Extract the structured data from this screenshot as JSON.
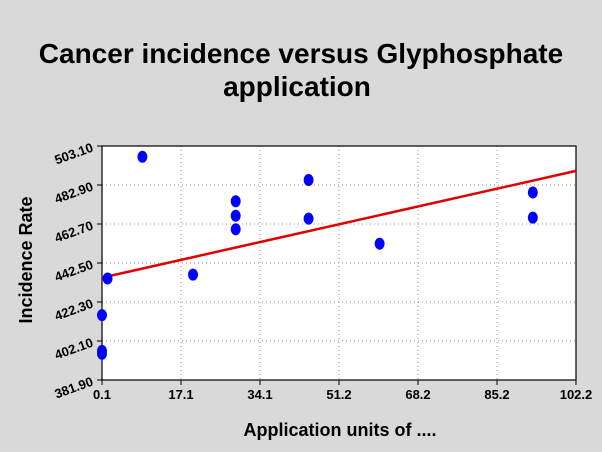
{
  "chart_data": {
    "type": "scatter",
    "title_lines": [
      "Cancer incidence versus Glyphosphate",
      "application"
    ],
    "xlabel": "Application units of ....",
    "ylabel": "Incidence Rate",
    "x_ticks": [
      "0.1",
      "17.1",
      "34.1",
      "51.2",
      "68.2",
      "85.2",
      "102.2"
    ],
    "y_ticks": [
      "381.90",
      "402.10",
      "422.30",
      "442.50",
      "462.70",
      "482.90",
      "503.10"
    ],
    "xlim": [
      0.1,
      102.2
    ],
    "ylim": [
      381.9,
      503.1
    ],
    "grid": true,
    "point_color": "#0000ff",
    "trendline_color": "#e00000",
    "series": [
      {
        "points": [
          {
            "x": 0.1,
            "y": 415.5
          },
          {
            "x": 0.1,
            "y": 397.0
          },
          {
            "x": 0.1,
            "y": 395.5
          },
          {
            "x": 1.3,
            "y": 434.5
          },
          {
            "x": 8.8,
            "y": 497.5
          },
          {
            "x": 19.7,
            "y": 436.5
          },
          {
            "x": 28.9,
            "y": 474.5
          },
          {
            "x": 28.9,
            "y": 467.0
          },
          {
            "x": 28.9,
            "y": 460.0
          },
          {
            "x": 44.6,
            "y": 485.5
          },
          {
            "x": 44.6,
            "y": 465.5
          },
          {
            "x": 59.9,
            "y": 452.5
          },
          {
            "x": 92.9,
            "y": 479.0
          },
          {
            "x": 92.9,
            "y": 466.0
          }
        ]
      }
    ],
    "trendline": {
      "x": [
        0.1,
        102.2
      ],
      "y": [
        434.9,
        490.2
      ]
    }
  }
}
